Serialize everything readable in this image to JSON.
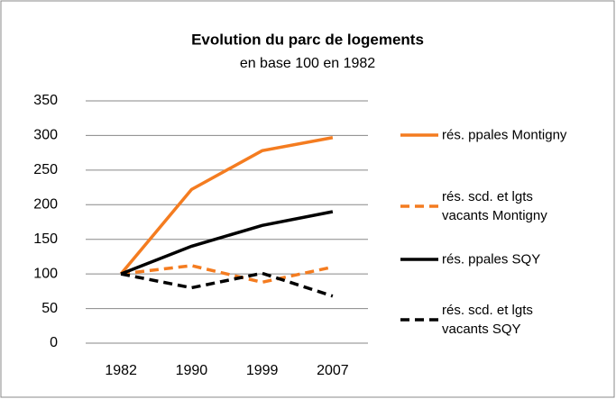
{
  "chart_data": {
    "type": "line",
    "title": "Evolution du parc de logements",
    "subtitle": "en base 100 en 1982",
    "categories": [
      "1982",
      "1990",
      "1999",
      "2007"
    ],
    "series": [
      {
        "name": "rés. ppales Montigny",
        "color": "#f47c20",
        "dashed": false,
        "values": [
          100,
          222,
          278,
          297
        ]
      },
      {
        "name": "rés. scd. et lgts vacants Montigny",
        "color": "#f47c20",
        "dashed": true,
        "values": [
          100,
          112,
          88,
          110
        ]
      },
      {
        "name": "rés. ppales SQY",
        "color": "#000000",
        "dashed": false,
        "values": [
          100,
          140,
          170,
          190
        ]
      },
      {
        "name": "rés. scd. et lgts vacants SQY",
        "color": "#000000",
        "dashed": true,
        "values": [
          100,
          80,
          101,
          68
        ]
      }
    ],
    "ylim": [
      0,
      350
    ],
    "yticks": [
      0,
      50,
      100,
      150,
      200,
      250,
      300,
      350
    ],
    "grid": true,
    "legend": "right"
  }
}
